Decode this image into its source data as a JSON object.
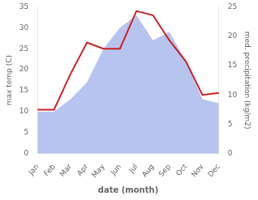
{
  "chart_data": {
    "type": "line",
    "categories": [
      "Jan",
      "Feb",
      "Mar",
      "Apr",
      "May",
      "Jun",
      "Jul",
      "Aug",
      "Sep",
      "Oct",
      "Nov",
      "Dec"
    ],
    "series": [
      {
        "type": "area",
        "color": "#b8c4f0",
        "values": [
          10.0,
          10.0,
          13.0,
          17.0,
          25.0,
          30.0,
          33.0,
          27.0,
          29.0,
          22.0,
          13.0,
          12.0
        ]
      },
      {
        "type": "line",
        "color": "#cc2222",
        "values": [
          10.5,
          10.5,
          19.0,
          26.5,
          25.0,
          25.0,
          34.0,
          33.0,
          27.0,
          22.0,
          14.0,
          14.5
        ]
      }
    ],
    "x_label": "date (month)",
    "y_label": "max temp (C)",
    "y2_label": "med. precipitation (kg/m2)",
    "ylim": [
      0,
      35
    ],
    "yticks": [
      0,
      5,
      10,
      15,
      20,
      25,
      30,
      35
    ],
    "y2lim": [
      0,
      25
    ],
    "y2ticks": [
      0,
      5,
      10,
      15,
      20,
      25
    ],
    "grid": false
  }
}
